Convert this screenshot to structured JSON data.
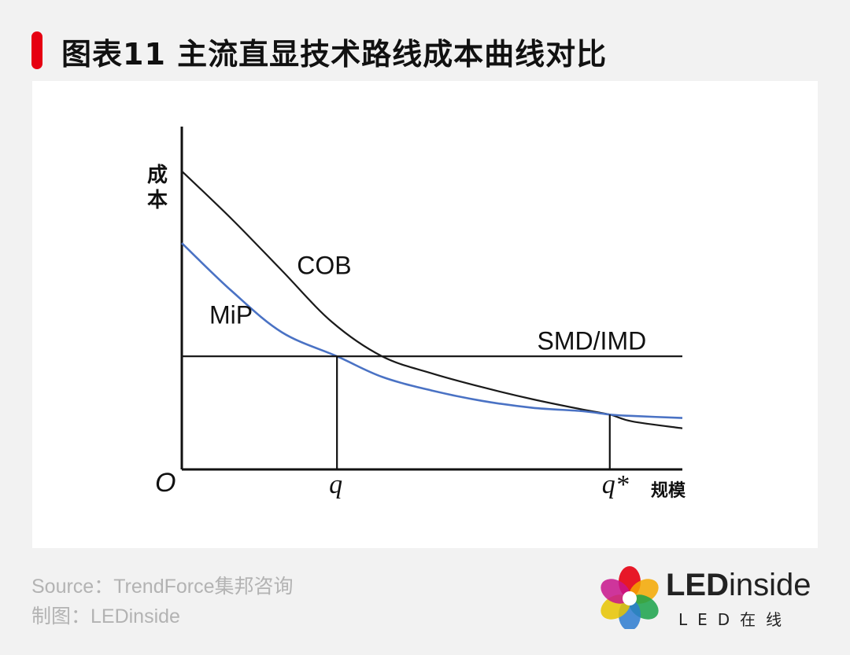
{
  "title": "图表11 主流直显技术路线成本曲线对比",
  "chart_data": {
    "type": "line",
    "title": "图表11 主流直显技术路线成本曲线对比",
    "ylabel": "成本",
    "xlabel": "规模",
    "origin_label": "O",
    "x_ticks": [
      {
        "label": "q",
        "x": 3.1
      },
      {
        "label": "q*",
        "x": 8.55
      }
    ],
    "xlim": [
      0,
      10
    ],
    "ylim": [
      0,
      10
    ],
    "series": [
      {
        "name": "COB",
        "color": "#1a1a1a",
        "points": [
          [
            0,
            8.7
          ],
          [
            1,
            7.3
          ],
          [
            2,
            5.8
          ],
          [
            3,
            4.3
          ],
          [
            4,
            3.3
          ],
          [
            5,
            2.8
          ],
          [
            6,
            2.4
          ],
          [
            7,
            2.05
          ],
          [
            8,
            1.75
          ],
          [
            8.55,
            1.6
          ],
          [
            9,
            1.4
          ],
          [
            10,
            1.2
          ]
        ]
      },
      {
        "name": "MiP",
        "color": "#4a72c4",
        "points": [
          [
            0,
            6.6
          ],
          [
            1,
            5.2
          ],
          [
            2,
            4.0
          ],
          [
            3.1,
            3.3
          ],
          [
            4,
            2.7
          ],
          [
            5,
            2.3
          ],
          [
            6,
            2.0
          ],
          [
            7,
            1.8
          ],
          [
            8,
            1.7
          ],
          [
            8.55,
            1.6
          ],
          [
            9,
            1.56
          ],
          [
            10,
            1.5
          ]
        ]
      },
      {
        "name": "SMD/IMD",
        "color": "#1a1a1a",
        "points": [
          [
            0,
            3.3
          ],
          [
            10,
            3.3
          ]
        ]
      }
    ],
    "series_labels": [
      {
        "text": "COB",
        "at": [
          2.3,
          5.7
        ]
      },
      {
        "name": "MiP",
        "text": "MiP",
        "at": [
          0.55,
          4.25
        ]
      },
      {
        "name": "SMD/IMD",
        "text": "SMD/IMD",
        "at": [
          7.1,
          3.5
        ]
      }
    ]
  },
  "footer": {
    "source": "Source：TrendForce集邦咨询",
    "credit": "制图：LEDinside"
  },
  "logo": {
    "word_bold": "LED",
    "word_light": "inside",
    "sub": "LED在线"
  }
}
